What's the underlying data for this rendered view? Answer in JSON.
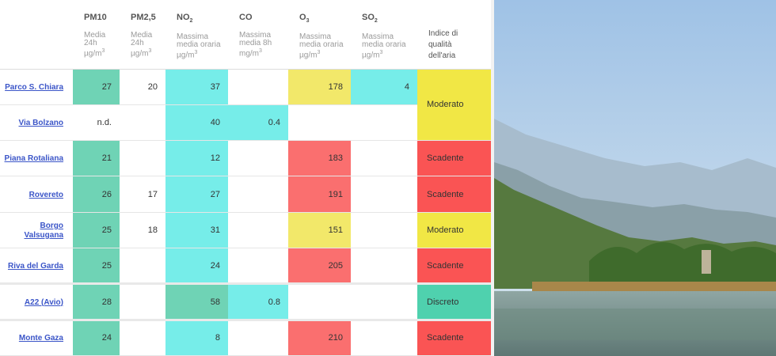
{
  "header": {
    "pollutants": [
      {
        "name": "PM10",
        "sub": "",
        "desc": [
          "Media",
          "24h",
          "µg/m"
        ],
        "unit_sup": "3"
      },
      {
        "name": "PM2,5",
        "sub": "",
        "desc": [
          "Media",
          "24h",
          "µg/m"
        ],
        "unit_sup": "3"
      },
      {
        "name": "NO",
        "sub": "2",
        "desc": [
          "Massima",
          "media oraria",
          "µg/m"
        ],
        "unit_sup": "3"
      },
      {
        "name": "CO",
        "sub": "",
        "desc": [
          "Massima",
          "media 8h",
          "mg/m"
        ],
        "unit_sup": "3"
      },
      {
        "name": "O",
        "sub": "3",
        "desc": [
          "Massima",
          "media oraria",
          "µg/m"
        ],
        "unit_sup": "3"
      },
      {
        "name": "SO",
        "sub": "2",
        "desc": [
          "Massima",
          "media oraria",
          "µg/m"
        ],
        "unit_sup": "3"
      }
    ],
    "index_title": [
      "Indice di",
      "qualità",
      "dell'aria"
    ]
  },
  "rows": [
    {
      "station": "Parco S. Chiara",
      "pm10": "27",
      "pm25": "20",
      "no2": "37",
      "co": "",
      "o3": "178",
      "so2": "4",
      "index": "Moderato"
    },
    {
      "station": "Via Bolzano",
      "pm10": "n.d.",
      "pm25": "",
      "no2": "40",
      "co": "0.4",
      "o3": "",
      "so2": "",
      "index": ""
    },
    {
      "station": "Piana Rotaliana",
      "pm10": "21",
      "pm25": "",
      "no2": "12",
      "co": "",
      "o3": "183",
      "so2": "",
      "index": "Scadente"
    },
    {
      "station": "Rovereto",
      "pm10": "26",
      "pm25": "17",
      "no2": "27",
      "co": "",
      "o3": "191",
      "so2": "",
      "index": "Scadente"
    },
    {
      "station": "Borgo Valsugana",
      "pm10": "25",
      "pm25": "18",
      "no2": "31",
      "co": "",
      "o3": "151",
      "so2": "",
      "index": "Moderato"
    },
    {
      "station": "Riva del Garda",
      "pm10": "25",
      "pm25": "",
      "no2": "24",
      "co": "",
      "o3": "205",
      "so2": "",
      "index": "Scadente"
    },
    {
      "station": "A22 (Avio)",
      "pm10": "28",
      "pm25": "",
      "no2": "58",
      "co": "0.8",
      "o3": "",
      "so2": "",
      "index": "Discreto"
    },
    {
      "station": "Monte Gaza",
      "pm10": "24",
      "pm25": "",
      "no2": "8",
      "co": "",
      "o3": "210",
      "so2": "",
      "index": "Scadente"
    }
  ],
  "colors": {
    "pm10": "#6fd3b5",
    "no2": "#76ede9",
    "o3_moderate": "#f2e86a",
    "o3_poor": "#fa6f6f",
    "index_moderate": "#f1e745",
    "index_poor": "#fa5454",
    "index_fair": "#4fd1ae",
    "link": "#3b55c8"
  }
}
